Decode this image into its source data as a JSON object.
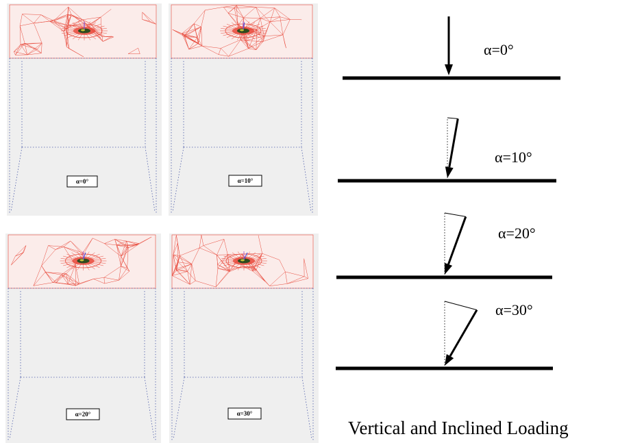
{
  "figure": {
    "caption": "Vertical and Inclined Loading",
    "panels": [
      {
        "label": "α=0°",
        "angle": 0
      },
      {
        "label": "α=10°",
        "angle": 10
      },
      {
        "label": "α=20°",
        "angle": 20
      },
      {
        "label": "α=30°",
        "angle": 30
      }
    ],
    "load_cases": [
      {
        "label": "α=0°",
        "angle": 0
      },
      {
        "label": "α=10°",
        "angle": 10
      },
      {
        "label": "α=20°",
        "angle": 20
      },
      {
        "label": "α=30°",
        "angle": 30
      }
    ],
    "colors": {
      "mesh": "#e8483a",
      "panel_bg": "#efefef",
      "frame_dots": "#4a5aa8",
      "core": "#2e4a1e",
      "arrow": "#000000"
    }
  }
}
